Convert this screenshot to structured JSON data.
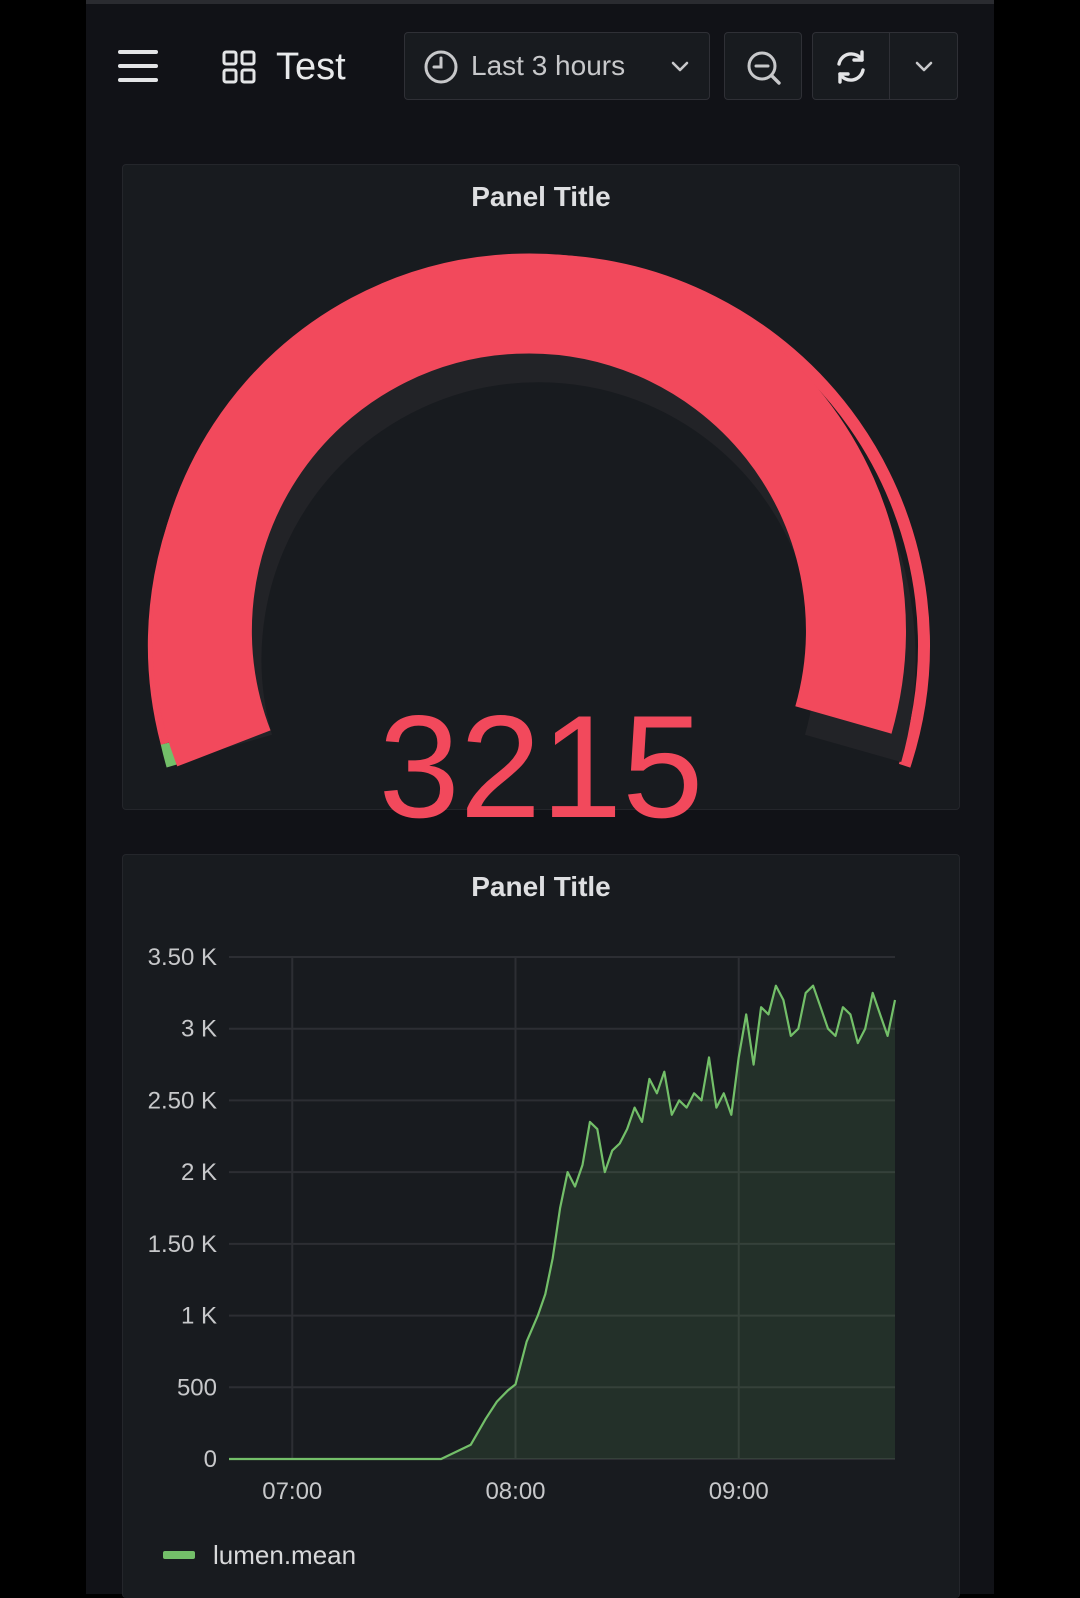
{
  "header": {
    "dashboard_title": "Test",
    "time_range_label": "Last 3 hours",
    "icons": {
      "menu": "hamburger-icon",
      "dashboard": "grid-icon",
      "time": "clock-icon",
      "time_dropdown": "chevron-down-icon",
      "zoom": "zoom-out-icon",
      "refresh": "refresh-icon",
      "refresh_dropdown": "chevron-down-icon"
    }
  },
  "colors": {
    "background": "#111217",
    "panel": "#181b1f",
    "threshold_red": "#f2495c",
    "threshold_green": "#73bf69"
  },
  "gauge_panel": {
    "title": "Panel Title",
    "value": "3215"
  },
  "graph_panel": {
    "title": "Panel Title",
    "legend_label": "lumen.mean"
  },
  "chart_data": {
    "type": "area",
    "title": "Panel Title",
    "x_ticks": [
      "07:00",
      "08:00",
      "09:00"
    ],
    "y_ticks": [
      "0",
      "500",
      "1 K",
      "1.50 K",
      "2 K",
      "2.50 K",
      "3 K",
      "3.50 K"
    ],
    "ylim": [
      0,
      3500
    ],
    "xlim_minutes": [
      "06:43",
      "09:42"
    ],
    "grid": true,
    "legend_position": "bottom-left",
    "series": [
      {
        "name": "lumen.mean",
        "color": "#73bf69",
        "x": [
          "06:43",
          "07:00",
          "07:20",
          "07:40",
          "07:48",
          "07:52",
          "07:55",
          "07:58",
          "08:00",
          "08:03",
          "08:06",
          "08:08",
          "08:10",
          "08:12",
          "08:14",
          "08:16",
          "08:18",
          "08:20",
          "08:22",
          "08:24",
          "08:26",
          "08:28",
          "08:30",
          "08:32",
          "08:34",
          "08:36",
          "08:38",
          "08:40",
          "08:42",
          "08:44",
          "08:46",
          "08:48",
          "08:50",
          "08:52",
          "08:54",
          "08:56",
          "08:58",
          "09:00",
          "09:02",
          "09:04",
          "09:06",
          "09:08",
          "09:10",
          "09:12",
          "09:14",
          "09:16",
          "09:18",
          "09:20",
          "09:22",
          "09:24",
          "09:26",
          "09:28",
          "09:30",
          "09:32",
          "09:34",
          "09:36",
          "09:38",
          "09:40",
          "09:42"
        ],
        "y": [
          0,
          0,
          0,
          0,
          100,
          280,
          400,
          480,
          520,
          820,
          1000,
          1150,
          1400,
          1750,
          2000,
          1900,
          2050,
          2350,
          2300,
          2000,
          2150,
          2200,
          2300,
          2450,
          2350,
          2650,
          2550,
          2700,
          2400,
          2500,
          2450,
          2550,
          2500,
          2800,
          2450,
          2550,
          2400,
          2800,
          3100,
          2750,
          3150,
          3100,
          3300,
          3200,
          2950,
          3000,
          3250,
          3300,
          3150,
          3000,
          2950,
          3150,
          3100,
          2900,
          3000,
          3250,
          3100,
          2950,
          3200
        ]
      }
    ]
  }
}
